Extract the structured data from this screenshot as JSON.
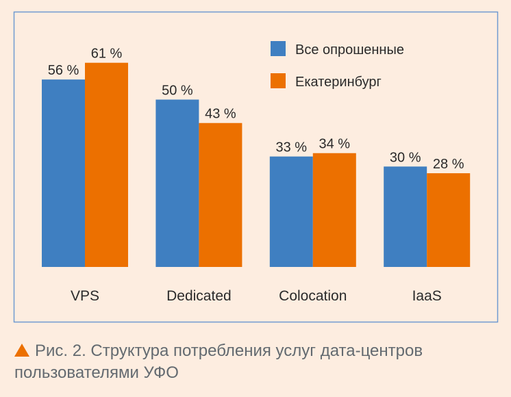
{
  "chart_data": {
    "type": "bar",
    "categories": [
      "VPS",
      "Dedicated",
      "Colocation",
      "IaaS"
    ],
    "series": [
      {
        "name": "Все опрошенные",
        "values": [
          56,
          50,
          33,
          30
        ],
        "color": "#3f7fc1"
      },
      {
        "name": "Екатеринбург",
        "values": [
          61,
          43,
          34,
          28
        ],
        "color": "#ec7000"
      }
    ],
    "value_suffix": " %",
    "ylim": [
      0,
      65
    ],
    "grid": false,
    "legend_position": "top-right",
    "title": "",
    "xlabel": "",
    "ylabel": ""
  },
  "caption": {
    "icon": "orange-triangle-icon",
    "text": "Рис. 2. Структура потребления услуг дата-центров пользователями УФО"
  }
}
